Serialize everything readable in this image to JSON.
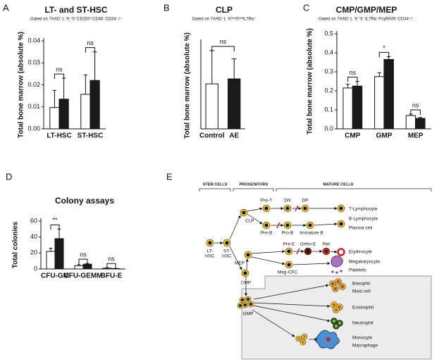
{
  "chart_data": [
    {
      "type": "bar",
      "panel": "A",
      "title": "LT- and ST-HSC",
      "subtitle": "Gated on 7AAD⁻L⁻K⁺S⁺CD150⁺CD48⁻CD34⁻/⁺",
      "y_label": "Total bone marrow (absolute %)",
      "categories": [
        "LT-HSC",
        "ST-HSC"
      ],
      "series": [
        {
          "color": "#ffffff",
          "values": [
            0.0097,
            0.0157
          ],
          "errors": [
            0.0078,
            0.0088
          ]
        },
        {
          "color": "#1a1a1a",
          "values": [
            0.0135,
            0.022
          ],
          "errors": [
            0.0095,
            0.013
          ]
        }
      ],
      "ylim": [
        0,
        0.04
      ],
      "yticks": [
        {
          "value": 0,
          "label": "0.00"
        },
        0.01,
        0.02,
        0.03,
        0.04
      ],
      "significance": [
        "ns",
        "ns"
      ]
    },
    {
      "type": "bar",
      "panel": "B",
      "title": "CLP",
      "subtitle": "Gated on 7AAD⁻L⁻KˡᵒʷSˡᵒʷIL7Rα⁺",
      "y_label": "Total bone marrow  (absolute %)",
      "categories": [
        "Control",
        "AE"
      ],
      "series": [
        {
          "colors": [
            "#ffffff",
            "#1a1a1a"
          ],
          "values": [
            0.27,
            0.3
          ],
          "errors": [
            0.2,
            0.12
          ]
        }
      ],
      "ylim": [
        0,
        0.52
      ],
      "significance": [
        "ns"
      ]
    },
    {
      "type": "bar",
      "panel": "C",
      "title": "CMP/GMP/MEP",
      "subtitle": "Gated on 7AAD⁻L⁻K⁺S⁻IL7Rα⁻FcγRII/III⁺CD34⁺/⁻",
      "y_label": "Total bone marrow (absolute %)",
      "categories": [
        "CMP",
        "GMP",
        "MEP"
      ],
      "series": [
        {
          "color": "#ffffff",
          "values": [
            0.215,
            0.275,
            0.07
          ],
          "errors": [
            0.02,
            0.02,
            0.008
          ]
        },
        {
          "color": "#1a1a1a",
          "values": [
            0.225,
            0.365,
            0.055
          ],
          "errors": [
            0.025,
            0.015,
            0.005
          ]
        }
      ],
      "ylim": [
        0,
        0.5
      ],
      "yticks": [
        {
          "value": 0,
          "label": "0.0"
        },
        0.1,
        0.2,
        0.3,
        0.4,
        0.5
      ],
      "significance": [
        "ns",
        "*",
        "ns"
      ]
    },
    {
      "type": "bar",
      "panel": "D",
      "title": "Colony assays",
      "y_label": "Total colonies",
      "categories": [
        "CFU-GM",
        "CFU-GEMM",
        "BFU-E"
      ],
      "series": [
        {
          "color": "#ffffff",
          "values": [
            22,
            4,
            1
          ],
          "errors": [
            4,
            1.5,
            0.5
          ]
        },
        {
          "color": "#1a1a1a",
          "values": [
            38,
            6,
            0.5
          ],
          "errors": [
            12,
            1,
            0.3
          ]
        }
      ],
      "ylim": [
        0,
        60
      ],
      "yticks": [
        0,
        20,
        40,
        60
      ],
      "significance": [
        "**",
        "ns",
        "ns"
      ]
    }
  ],
  "diagram": {
    "panel": "E",
    "headers": [
      "STEM CELLS",
      "PROGENITORS",
      "MATURE CELLS"
    ],
    "labels": {
      "lt": [
        "LT-",
        "HSC"
      ],
      "st": [
        "ST-",
        "HSC"
      ],
      "clp": "CLP",
      "pret": "Pre-T",
      "preb": "Pre-B",
      "dn": "DN",
      "dp": "DP",
      "prob": "Pro-B",
      "immb": "Immature B",
      "tly": "T-Lymphocyte",
      "bly": "B-Lymphocyte",
      "plasma": "Plasma cell",
      "mep": "MEP",
      "pree": "Pre-E",
      "orthoe": "Ortho-E",
      "ret": "Ret",
      "megcfc": "Meg-CFC",
      "ery": "Erythrocyte",
      "megak": "Megakaryocyte",
      "plt": "Platelets",
      "cmp": "CMP",
      "gmp": "GMP",
      "baso": "Basophil",
      "mast": "Mast cell",
      "eos": "Eosinophil",
      "neut": "Neutrophil",
      "mono": "Monocyte",
      "macro": "Macrophage"
    }
  }
}
